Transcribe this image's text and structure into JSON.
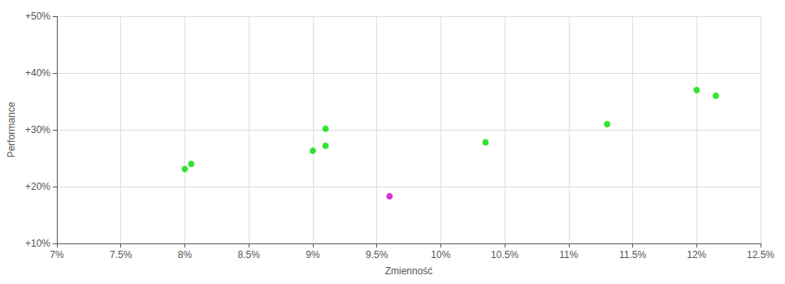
{
  "chart_data": {
    "type": "scatter",
    "xlabel": "Zmienność",
    "ylabel": "Performance",
    "xlim": [
      0.07,
      0.125
    ],
    "ylim": [
      0.1,
      0.5
    ],
    "xticks": [
      {
        "value": 0.07,
        "label": "7%"
      },
      {
        "value": 0.075,
        "label": "7.5%"
      },
      {
        "value": 0.08,
        "label": "8%"
      },
      {
        "value": 0.085,
        "label": "8.5%"
      },
      {
        "value": 0.09,
        "label": "9%"
      },
      {
        "value": 0.095,
        "label": "9.5%"
      },
      {
        "value": 0.1,
        "label": "10%"
      },
      {
        "value": 0.105,
        "label": "10.5%"
      },
      {
        "value": 0.11,
        "label": "11%"
      },
      {
        "value": 0.115,
        "label": "11.5%"
      },
      {
        "value": 0.12,
        "label": "12%"
      },
      {
        "value": 0.125,
        "label": "12.5%"
      }
    ],
    "yticks": [
      {
        "value": 0.1,
        "label": "+10%"
      },
      {
        "value": 0.2,
        "label": "+20%"
      },
      {
        "value": 0.3,
        "label": "+30%"
      },
      {
        "value": 0.4,
        "label": "+40%"
      },
      {
        "value": 0.5,
        "label": "+50%"
      }
    ],
    "grid": true,
    "series": [
      {
        "color": "#00dd00",
        "x": [
          0.08,
          0.0805,
          0.09,
          0.091,
          0.091,
          0.1035,
          0.113,
          0.12,
          0.1215
        ],
        "values": [
          0.231,
          0.24,
          0.263,
          0.272,
          0.302,
          0.278,
          0.31,
          0.37,
          0.36
        ]
      },
      {
        "color": "#cc00cc",
        "x": [
          0.096
        ],
        "values": [
          0.183
        ]
      }
    ]
  }
}
